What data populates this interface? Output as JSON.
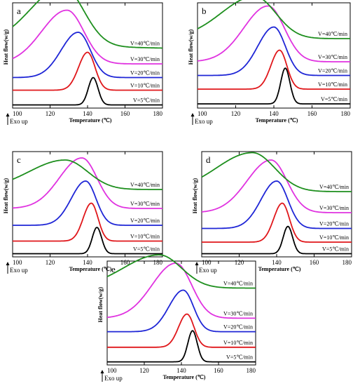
{
  "chart_data": [
    {
      "panel": "a",
      "type": "line",
      "xlabel": "Temperature (℃)",
      "ylabel": "Heat flow(w/g)",
      "exo_label": "Exo up",
      "xlim": [
        100,
        180
      ],
      "xticks": [
        "100",
        "120",
        "140",
        "160",
        "180"
      ],
      "series": [
        {
          "name": "V=5℃/min",
          "color": "#000000",
          "peak_temperature": 143,
          "peak_height": 0.26,
          "width": 2.6,
          "left_ratio": 1.0,
          "offset": 0.03,
          "tail": 0.0
        },
        {
          "name": "V=10℃/min",
          "color": "#e0171b",
          "peak_temperature": 140,
          "peak_height": 0.36,
          "width": 4.0,
          "left_ratio": 1.2,
          "offset": 0.17,
          "tail": 0.0
        },
        {
          "name": "V=20℃/min",
          "color": "#1f26d6",
          "peak_temperature": 135,
          "peak_height": 0.43,
          "width": 6.5,
          "left_ratio": 1.4,
          "offset": 0.29,
          "tail": 0.0
        },
        {
          "name": "V=30℃/min",
          "color": "#e033e0",
          "peak_temperature": 129,
          "peak_height": 0.51,
          "width": 9.0,
          "left_ratio": 1.5,
          "offset": 0.42,
          "tail": 0.0
        },
        {
          "name": "V=40℃/min",
          "color": "#1e8f1e",
          "peak_temperature": 127,
          "peak_height": 0.56,
          "width": 11.0,
          "left_ratio": 1.6,
          "offset": 0.6,
          "tail": -0.03
        }
      ]
    },
    {
      "panel": "b",
      "type": "line",
      "xlabel": "Temperature (℃)",
      "ylabel": "Heat flow(w/g)",
      "exo_label": "Exo up",
      "xlim": [
        100,
        180
      ],
      "xticks": [
        "100",
        "120",
        "140",
        "160",
        "180"
      ],
      "series": [
        {
          "name": "V=5℃/min",
          "color": "#000000",
          "peak_temperature": 146,
          "peak_height": 0.34,
          "width": 2.4,
          "left_ratio": 1.0,
          "offset": 0.04,
          "tail": 0.0
        },
        {
          "name": "V=10℃/min",
          "color": "#e0171b",
          "peak_temperature": 143,
          "peak_height": 0.37,
          "width": 3.8,
          "left_ratio": 1.2,
          "offset": 0.18,
          "tail": 0.0
        },
        {
          "name": "V=20℃/min",
          "color": "#1f26d6",
          "peak_temperature": 140,
          "peak_height": 0.46,
          "width": 6.0,
          "left_ratio": 1.4,
          "offset": 0.31,
          "tail": 0.0
        },
        {
          "name": "V=30℃/min",
          "color": "#e033e0",
          "peak_temperature": 137,
          "peak_height": 0.53,
          "width": 8.5,
          "left_ratio": 1.5,
          "offset": 0.44,
          "tail": 0.0
        },
        {
          "name": "V=40℃/min",
          "color": "#1e8f1e",
          "peak_temperature": 130,
          "peak_height": 0.4,
          "width": 11.0,
          "left_ratio": 1.6,
          "offset": 0.66,
          "tail": 0.0
        }
      ]
    },
    {
      "panel": "c",
      "type": "line",
      "xlabel": "Temperature (℃)",
      "ylabel": "Heat flow(w/g)",
      "exo_label": "Exo up",
      "xlim": [
        100,
        180
      ],
      "xticks": [
        "100",
        "120",
        "140",
        "160",
        "180"
      ],
      "series": [
        {
          "name": "V=5℃/min",
          "color": "#000000",
          "peak_temperature": 145,
          "peak_height": 0.25,
          "width": 2.5,
          "left_ratio": 1.0,
          "offset": 0.03,
          "tail": 0.0
        },
        {
          "name": "V=10℃/min",
          "color": "#e0171b",
          "peak_temperature": 142,
          "peak_height": 0.36,
          "width": 3.6,
          "left_ratio": 1.2,
          "offset": 0.15,
          "tail": 0.0
        },
        {
          "name": "V=20℃/min",
          "color": "#1f26d6",
          "peak_temperature": 139,
          "peak_height": 0.42,
          "width": 5.5,
          "left_ratio": 1.4,
          "offset": 0.3,
          "tail": 0.0
        },
        {
          "name": "V=30℃/min",
          "color": "#e033e0",
          "peak_temperature": 137,
          "peak_height": 0.48,
          "width": 8.0,
          "left_ratio": 1.5,
          "offset": 0.46,
          "tail": 0.0
        },
        {
          "name": "V=40℃/min",
          "color": "#1e8f1e",
          "peak_temperature": 128,
          "peak_height": 0.28,
          "width": 12.0,
          "left_ratio": 1.6,
          "offset": 0.64,
          "tail": 0.0
        }
      ]
    },
    {
      "panel": "d",
      "type": "line",
      "xlabel": "Temperature (℃)",
      "ylabel": "Heat flow(w/g)",
      "exo_label": "Exo up",
      "xlim": [
        100,
        180
      ],
      "xticks": [
        "100",
        "120",
        "140",
        "160",
        "180"
      ],
      "series": [
        {
          "name": "V=5℃/min",
          "color": "#000000",
          "peak_temperature": 146,
          "peak_height": 0.26,
          "width": 2.5,
          "left_ratio": 1.0,
          "offset": 0.03,
          "tail": 0.0
        },
        {
          "name": "V=10℃/min",
          "color": "#e0171b",
          "peak_temperature": 143,
          "peak_height": 0.37,
          "width": 3.8,
          "left_ratio": 1.2,
          "offset": 0.14,
          "tail": 0.0
        },
        {
          "name": "V=20℃/min",
          "color": "#1f26d6",
          "peak_temperature": 140,
          "peak_height": 0.45,
          "width": 6.0,
          "left_ratio": 1.4,
          "offset": 0.27,
          "tail": 0.0
        },
        {
          "name": "V=30℃/min",
          "color": "#e033e0",
          "peak_temperature": 137,
          "peak_height": 0.5,
          "width": 8.5,
          "left_ratio": 1.5,
          "offset": 0.42,
          "tail": 0.0
        },
        {
          "name": "V=40℃/min",
          "color": "#1e8f1e",
          "peak_temperature": 127,
          "peak_height": 0.37,
          "width": 12.0,
          "left_ratio": 1.6,
          "offset": 0.62,
          "tail": 0.0
        }
      ]
    },
    {
      "panel": "e",
      "type": "line",
      "xlabel": "Temperature (℃)",
      "ylabel": "Heat flow(w/g)",
      "exo_label": "Exo up",
      "xlim": [
        100,
        180
      ],
      "xticks": [
        "100",
        "120",
        "140",
        "160",
        "180"
      ],
      "series": [
        {
          "name": "V=5℃/min",
          "color": "#000000",
          "peak_temperature": 146,
          "peak_height": 0.3,
          "width": 2.5,
          "left_ratio": 1.0,
          "offset": 0.03,
          "tail": 0.0
        },
        {
          "name": "V=10℃/min",
          "color": "#e0171b",
          "peak_temperature": 143,
          "peak_height": 0.32,
          "width": 3.8,
          "left_ratio": 1.2,
          "offset": 0.17,
          "tail": 0.0
        },
        {
          "name": "V=20℃/min",
          "color": "#1f26d6",
          "peak_temperature": 141,
          "peak_height": 0.4,
          "width": 5.5,
          "left_ratio": 1.4,
          "offset": 0.32,
          "tail": 0.0
        },
        {
          "name": "V=30℃/min",
          "color": "#e033e0",
          "peak_temperature": 137,
          "peak_height": 0.53,
          "width": 8.5,
          "left_ratio": 1.5,
          "offset": 0.45,
          "tail": 0.0
        },
        {
          "name": "V=40℃/min",
          "color": "#1e8f1e",
          "peak_temperature": 128,
          "peak_height": 0.32,
          "width": 12.0,
          "left_ratio": 1.6,
          "offset": 0.74,
          "tail": 0.0
        }
      ]
    }
  ]
}
